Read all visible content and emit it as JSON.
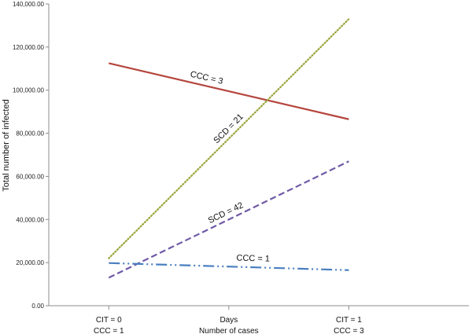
{
  "chart_data": {
    "type": "line",
    "ylabel": "Total number of infected",
    "ylim": [
      0,
      140000
    ],
    "yticks": [
      0,
      20000,
      40000,
      60000,
      80000,
      100000,
      120000,
      140000
    ],
    "ytick_labels": [
      "0.00",
      "20,000.00",
      "40,000.00",
      "60,000.00",
      "80,000.00",
      "100,000.00",
      "120,000.00",
      "140,000.00"
    ],
    "categories": [
      {
        "lines": [
          "CIT = 0",
          "CCC = 1"
        ]
      },
      {
        "lines": [
          "Days",
          "Number of cases"
        ]
      },
      {
        "lines": [
          "CIT = 1",
          "CCC = 3"
        ]
      }
    ],
    "x_range": [
      -0.5,
      3.0
    ],
    "series": [
      {
        "name": "CCC = 3",
        "x": [
          0,
          2
        ],
        "y": [
          112500,
          86500
        ],
        "color": "#b5463e",
        "dash": "solid"
      },
      {
        "name": "SCD = 21",
        "x": [
          0,
          2
        ],
        "y": [
          22000,
          133000
        ],
        "color": "#9aa63c",
        "dash": "dotted"
      },
      {
        "name": "SCD = 42",
        "x": [
          0,
          2
        ],
        "y": [
          13000,
          67000
        ],
        "color": "#6f5aa6",
        "dash": "dashed"
      },
      {
        "name": "CCC = 1",
        "x": [
          0,
          2
        ],
        "y": [
          19800,
          16500
        ],
        "color": "#4a7fc0",
        "dash": "dashdotdot"
      }
    ],
    "grid": false,
    "legend": "inline labels"
  }
}
